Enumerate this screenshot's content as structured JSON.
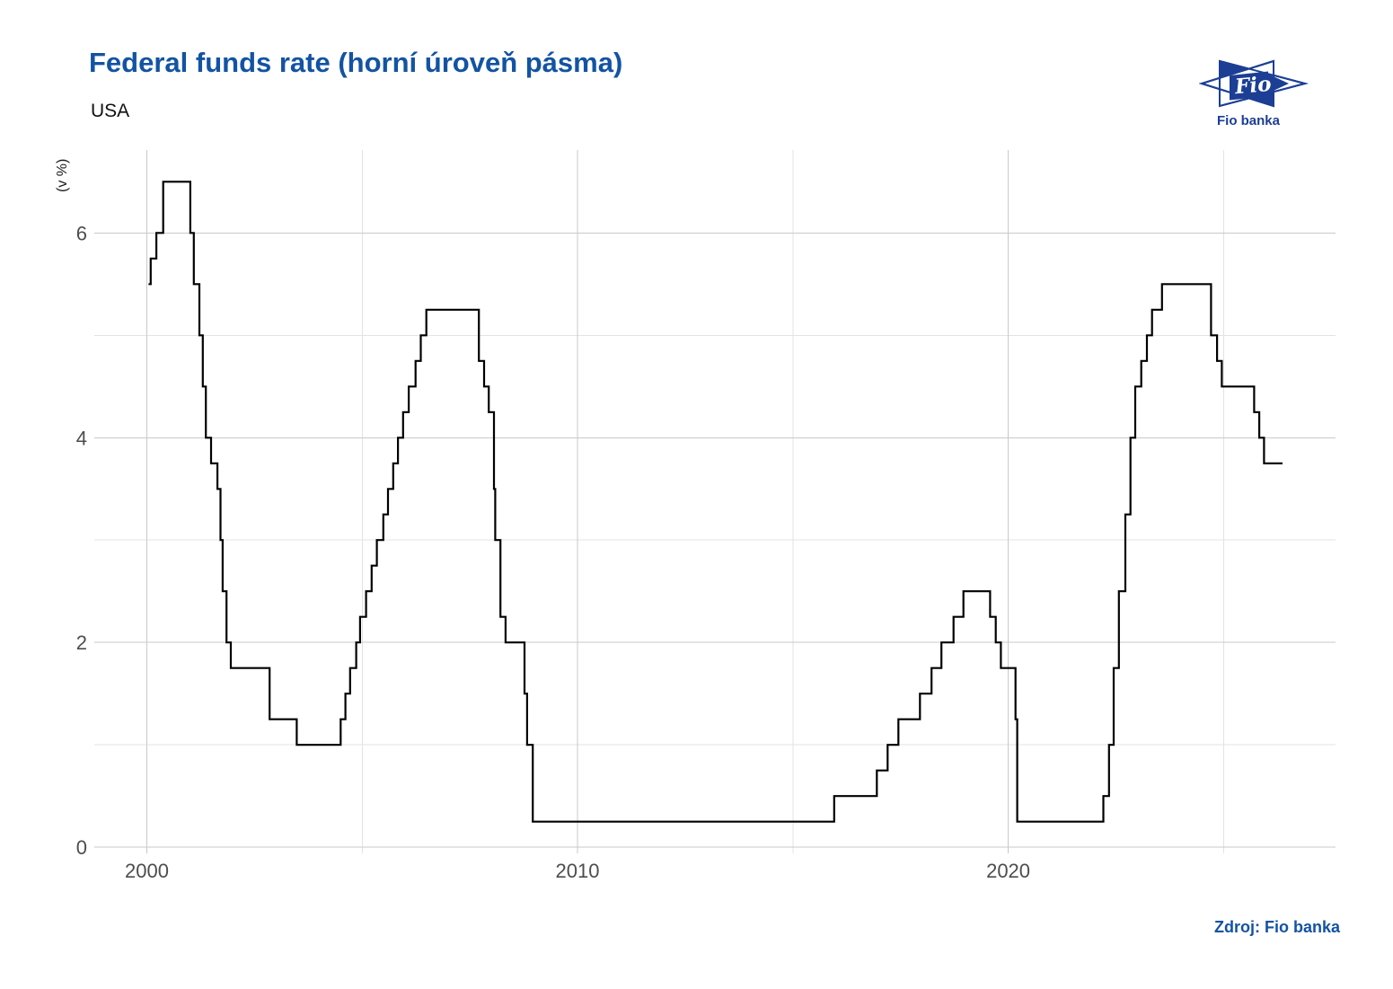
{
  "header": {
    "title": "Federal funds rate (horní úroveň pásma)",
    "subtitle": "USA"
  },
  "logo": {
    "text": "Fio",
    "caption": "Fio banka",
    "color": "#1c3e94"
  },
  "source": {
    "label": "Zdroj: Fio banka"
  },
  "colors": {
    "title_blue": "#1353a3",
    "logo_blue": "#1c3e94",
    "source_blue": "#1353a3",
    "line_black": "#000000",
    "grid_major": "#c9c9c9",
    "grid_minor": "#e3e3e3",
    "tick_label_gray": "#4d4d4d"
  },
  "chart_data": {
    "type": "line",
    "style": "step-after",
    "title": "Federal funds rate (horní úroveň pásma)",
    "subtitle": "USA",
    "xlabel": "",
    "ylabel": "(v %)",
    "grid": true,
    "legend_position": "none",
    "xlim": [
      1998.78,
      2027.6
    ],
    "ylim": [
      -0.06,
      6.81
    ],
    "x_major_ticks": [
      2000,
      2010,
      2020
    ],
    "x_minor_ticks": [
      2005,
      2015,
      2025
    ],
    "y_major_ticks": [
      0,
      2,
      4,
      6
    ],
    "y_minor_ticks": [
      1,
      3,
      5
    ],
    "series": [
      {
        "name": "Federal funds rate (horní úroveň pásma), USA",
        "units": "%",
        "points": [
          [
            2000.04,
            5.5
          ],
          [
            2000.09,
            5.75
          ],
          [
            2000.22,
            6.0
          ],
          [
            2000.38,
            6.5
          ],
          [
            2001.01,
            6.0
          ],
          [
            2001.09,
            5.5
          ],
          [
            2001.22,
            5.0
          ],
          [
            2001.3,
            4.5
          ],
          [
            2001.37,
            4.0
          ],
          [
            2001.49,
            3.75
          ],
          [
            2001.64,
            3.5
          ],
          [
            2001.71,
            3.0
          ],
          [
            2001.76,
            2.5
          ],
          [
            2001.85,
            2.0
          ],
          [
            2001.95,
            1.75
          ],
          [
            2002.85,
            1.25
          ],
          [
            2003.48,
            1.0
          ],
          [
            2004.5,
            1.25
          ],
          [
            2004.61,
            1.5
          ],
          [
            2004.72,
            1.75
          ],
          [
            2004.86,
            2.0
          ],
          [
            2004.95,
            2.25
          ],
          [
            2005.09,
            2.5
          ],
          [
            2005.22,
            2.75
          ],
          [
            2005.34,
            3.0
          ],
          [
            2005.49,
            3.25
          ],
          [
            2005.6,
            3.5
          ],
          [
            2005.72,
            3.75
          ],
          [
            2005.83,
            4.0
          ],
          [
            2005.95,
            4.25
          ],
          [
            2006.08,
            4.5
          ],
          [
            2006.24,
            4.75
          ],
          [
            2006.36,
            5.0
          ],
          [
            2006.49,
            5.25
          ],
          [
            2007.71,
            4.75
          ],
          [
            2007.83,
            4.5
          ],
          [
            2007.94,
            4.25
          ],
          [
            2008.06,
            3.5
          ],
          [
            2008.09,
            3.0
          ],
          [
            2008.21,
            2.25
          ],
          [
            2008.33,
            2.0
          ],
          [
            2008.77,
            1.5
          ],
          [
            2008.83,
            1.0
          ],
          [
            2008.96,
            0.25
          ],
          [
            2015.96,
            0.5
          ],
          [
            2016.95,
            0.75
          ],
          [
            2017.2,
            1.0
          ],
          [
            2017.45,
            1.25
          ],
          [
            2017.95,
            1.5
          ],
          [
            2018.22,
            1.75
          ],
          [
            2018.45,
            2.0
          ],
          [
            2018.73,
            2.25
          ],
          [
            2018.96,
            2.5
          ],
          [
            2019.58,
            2.25
          ],
          [
            2019.71,
            2.0
          ],
          [
            2019.83,
            1.75
          ],
          [
            2020.17,
            1.25
          ],
          [
            2020.21,
            0.25
          ],
          [
            2022.21,
            0.5
          ],
          [
            2022.34,
            1.0
          ],
          [
            2022.45,
            1.75
          ],
          [
            2022.57,
            2.5
          ],
          [
            2022.72,
            3.25
          ],
          [
            2022.84,
            4.0
          ],
          [
            2022.95,
            4.5
          ],
          [
            2023.09,
            4.75
          ],
          [
            2023.22,
            5.0
          ],
          [
            2023.34,
            5.25
          ],
          [
            2023.57,
            5.5
          ],
          [
            2024.71,
            5.0
          ],
          [
            2024.85,
            4.75
          ],
          [
            2024.96,
            4.5
          ],
          [
            2025.71,
            4.25
          ],
          [
            2025.83,
            4.0
          ],
          [
            2025.94,
            3.75
          ],
          [
            2026.37,
            3.75
          ]
        ]
      }
    ]
  }
}
